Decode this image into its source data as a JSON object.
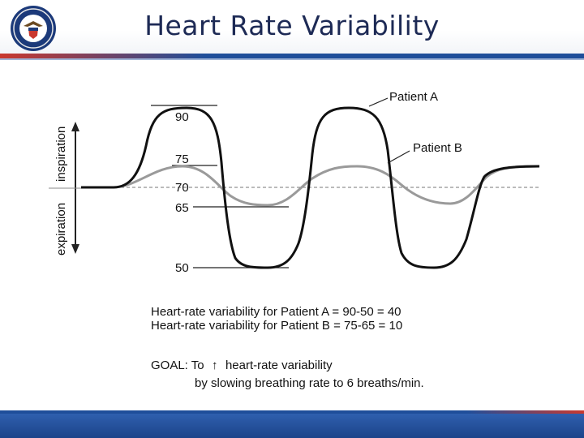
{
  "slide": {
    "title": "Heart Rate Variability"
  },
  "diagram": {
    "axis": {
      "inspiration_label": "inspiration",
      "expiration_label": "expiration"
    },
    "level_labels": [
      "90",
      "75",
      "70",
      "65",
      "50"
    ],
    "series": [
      {
        "name": "Patient A",
        "color": "#111111",
        "peak": 90,
        "trough": 50
      },
      {
        "name": "Patient B",
        "color": "#999999",
        "peak": 75,
        "trough": 65
      }
    ],
    "baseline": 70
  },
  "notes": {
    "line1": "Heart-rate variability for Patient A = 90-50 = 40",
    "line2": "Heart-rate variability for Patient B = 75-65 = 10"
  },
  "goal": {
    "prefix": "GOAL: To",
    "up_arrow": "↑",
    "suffix": "heart-rate variability",
    "line2": "by slowing breathing rate to 6 breaths/min."
  },
  "colors": {
    "title_text": "#1d2a55",
    "accent_blue": "#1f4e9a",
    "accent_red": "#c9382e"
  },
  "icons": {
    "seal": "department-seal-icon"
  }
}
